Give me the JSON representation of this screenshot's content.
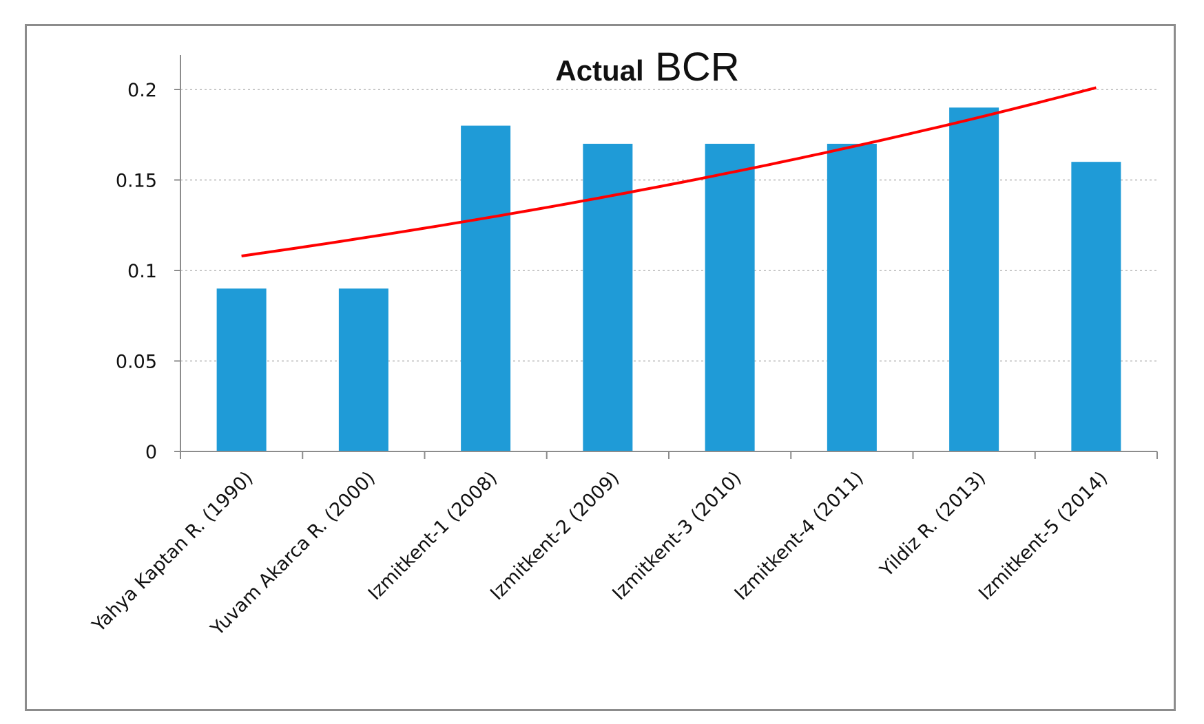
{
  "chart_data": {
    "type": "bar",
    "title_part1": "Actual",
    "title_part2": "BCR",
    "categories": [
      "Yahya Kaptan R. (1990)",
      "Yuvam Akarca R. (2000)",
      "Izmitkent-1 (2008)",
      "Izmitkent-2 (2009)",
      "Izmitkent-3 (2010)",
      "Izmitkent-4 (2011)",
      "Yildiz R. (2013)",
      "Izmitkent-5 (2014)"
    ],
    "values": [
      0.09,
      0.09,
      0.18,
      0.17,
      0.17,
      0.17,
      0.19,
      0.16
    ],
    "trendline": {
      "type": "exponential",
      "start": 0.108,
      "end": 0.201,
      "color": "#ff0000"
    },
    "ylim": [
      0,
      0.2
    ],
    "yticks": [
      "0",
      "0.05",
      "0.1",
      "0.15",
      "0.2"
    ],
    "ytick_values": [
      0,
      0.05,
      0.1,
      0.15,
      0.2
    ],
    "grid": true,
    "legend": "none",
    "bar_color": "#1f9bd7"
  }
}
